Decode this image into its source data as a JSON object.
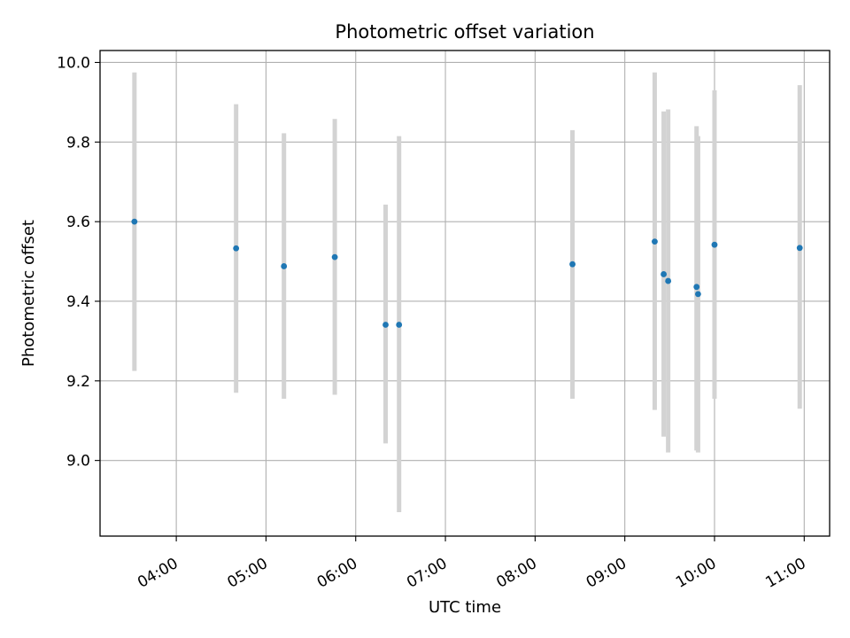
{
  "chart_data": {
    "type": "scatter",
    "title": "Photometric offset variation",
    "xlabel": "UTC time",
    "ylabel": "Photometric offset",
    "x_tick_labels": [
      "04:00",
      "05:00",
      "06:00",
      "07:00",
      "08:00",
      "09:00",
      "10:00",
      "11:00"
    ],
    "y_tick_labels": [
      "9.0",
      "9.2",
      "9.4",
      "9.6",
      "9.8",
      "10.0"
    ],
    "xlim": [
      "03:09",
      "11:17"
    ],
    "ylim": [
      8.81,
      10.03
    ],
    "grid": true,
    "marker_color": "#1f77b4",
    "errorbar_color": "#d3d3d3",
    "points": [
      {
        "t": "03:32",
        "y": 9.6,
        "ylo": 9.225,
        "yhi": 9.975
      },
      {
        "t": "04:40",
        "y": 9.533,
        "ylo": 9.17,
        "yhi": 9.895
      },
      {
        "t": "05:12",
        "y": 9.488,
        "ylo": 9.155,
        "yhi": 9.822
      },
      {
        "t": "05:46",
        "y": 9.511,
        "ylo": 9.165,
        "yhi": 9.858
      },
      {
        "t": "06:20",
        "y": 9.341,
        "ylo": 9.043,
        "yhi": 9.643
      },
      {
        "t": "06:29",
        "y": 9.341,
        "ylo": 8.87,
        "yhi": 9.815
      },
      {
        "t": "08:25",
        "y": 9.493,
        "ylo": 9.155,
        "yhi": 9.83
      },
      {
        "t": "09:20",
        "y": 9.55,
        "ylo": 9.127,
        "yhi": 9.975
      },
      {
        "t": "09:26",
        "y": 9.468,
        "ylo": 9.06,
        "yhi": 9.877
      },
      {
        "t": "09:29",
        "y": 9.451,
        "ylo": 9.02,
        "yhi": 9.882
      },
      {
        "t": "09:48",
        "y": 9.436,
        "ylo": 9.025,
        "yhi": 9.84
      },
      {
        "t": "09:49",
        "y": 9.418,
        "ylo": 9.02,
        "yhi": 9.815
      },
      {
        "t": "10:00",
        "y": 9.542,
        "ylo": 9.155,
        "yhi": 9.93
      },
      {
        "t": "10:57",
        "y": 9.534,
        "ylo": 9.13,
        "yhi": 9.943
      }
    ]
  }
}
